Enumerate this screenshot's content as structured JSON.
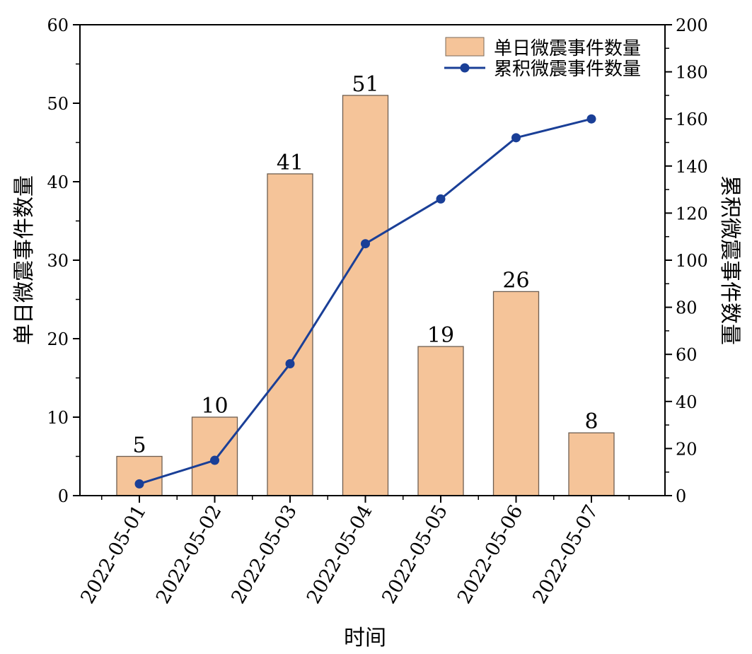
{
  "chart_data": {
    "type": "bar+line",
    "categories": [
      "2022-05-01",
      "2022-05-02",
      "2022-05-03",
      "2022-05-04",
      "2022-05-05",
      "2022-05-06",
      "2022-05-07"
    ],
    "series": [
      {
        "name": "单日微震事件数量",
        "type": "bar",
        "axis": "left",
        "color": "#f5c499",
        "values": [
          5,
          10,
          41,
          51,
          19,
          26,
          8
        ]
      },
      {
        "name": "累积微震事件数量",
        "type": "line",
        "axis": "right",
        "color": "#1a3f97",
        "values": [
          5,
          15,
          56,
          107,
          126,
          152,
          160
        ]
      }
    ],
    "xlabel": "时间",
    "ylabel_left": "单日微震事件数量",
    "ylabel_right": "累积微震事件数量",
    "ylim_left": [
      0,
      60
    ],
    "yticks_left": [
      0,
      10,
      20,
      30,
      40,
      50,
      60
    ],
    "ylim_right": [
      0,
      200
    ],
    "yticks_right": [
      0,
      20,
      40,
      60,
      80,
      100,
      120,
      140,
      160,
      180,
      200
    ],
    "legend_position": "top-right",
    "grid": false,
    "bar_data_labels": true
  }
}
